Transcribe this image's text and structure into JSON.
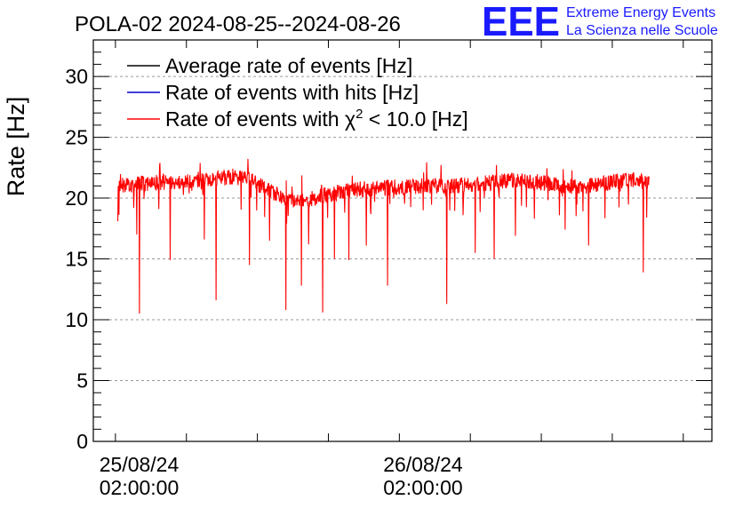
{
  "chart_data": {
    "type": "line",
    "title": "POLA-02 2024-08-25--2024-08-26",
    "ylabel": "Rate [Hz]",
    "xlabel": "",
    "ylim": [
      0,
      33
    ],
    "yticks": [
      0,
      5,
      10,
      15,
      20,
      25,
      30
    ],
    "grid": true,
    "legend_position": "top-left",
    "x_unit": "hours since 2024-08-25 00:00:00",
    "xlim": [
      -1.87,
      50.42
    ],
    "xticks": [
      {
        "hour": 2,
        "date": "25/08/24",
        "time": "02:00:00"
      },
      {
        "hour": 26,
        "date": "26/08/24",
        "time": "02:00:00"
      }
    ],
    "logo": {
      "text": "EEE",
      "line1": "Extreme Energy Events",
      "line2": "La Scienza nelle Scuole"
    },
    "series": [
      {
        "name": "Average rate of events [Hz]",
        "label_prefix": "Average rate of events [Hz]",
        "color": "#000000"
      },
      {
        "name": "Rate of events with hits [Hz]",
        "label_prefix": "Rate of events with hits [Hz]",
        "color": "#0000cc"
      },
      {
        "name": "Rate of events with χ2 < 10.0 [Hz]",
        "label_prefix": "Rate of events with ",
        "symbol": "χ",
        "sup": "2",
        "label_suffix": " < 10.0 [Hz]",
        "color": "#ff0000"
      }
    ],
    "data_range": {
      "x_start": 0.2,
      "x_end": 45.1
    },
    "trend": {
      "x": [
        0.2,
        4,
        8,
        10,
        11.5,
        13,
        14.5,
        16,
        18,
        20,
        22,
        24,
        26,
        28,
        30,
        32,
        34,
        36,
        38,
        40,
        42,
        44,
        45.1
      ],
      "y": [
        21.0,
        21.3,
        21.6,
        21.7,
        21.5,
        20.6,
        19.9,
        19.8,
        20.3,
        20.7,
        20.8,
        20.9,
        21.0,
        21.0,
        21.1,
        21.3,
        21.5,
        21.3,
        20.9,
        21.0,
        21.3,
        21.5,
        21.2
      ]
    },
    "noise_amplitude": 0.65,
    "dips": [
      {
        "x": 0.1,
        "y": 18.1
      },
      {
        "x": 1.8,
        "y": 17.0
      },
      {
        "x": 2.0,
        "y": 10.5
      },
      {
        "x": 4.6,
        "y": 14.9
      },
      {
        "x": 7.5,
        "y": 16.6
      },
      {
        "x": 8.5,
        "y": 11.6
      },
      {
        "x": 11.3,
        "y": 14.5
      },
      {
        "x": 13.0,
        "y": 16.5
      },
      {
        "x": 14.4,
        "y": 10.8
      },
      {
        "x": 15.7,
        "y": 12.8
      },
      {
        "x": 16.3,
        "y": 16.2
      },
      {
        "x": 17.5,
        "y": 10.6
      },
      {
        "x": 18.5,
        "y": 15.0
      },
      {
        "x": 19.7,
        "y": 14.9
      },
      {
        "x": 21.2,
        "y": 16.1
      },
      {
        "x": 23.0,
        "y": 12.8
      },
      {
        "x": 26.0,
        "y": 19.0
      },
      {
        "x": 28.0,
        "y": 11.3
      },
      {
        "x": 30.4,
        "y": 15.5
      },
      {
        "x": 32.0,
        "y": 15.0
      },
      {
        "x": 33.8,
        "y": 16.9
      },
      {
        "x": 35.4,
        "y": 18.3
      },
      {
        "x": 38.0,
        "y": 17.4
      },
      {
        "x": 40.0,
        "y": 16.1
      },
      {
        "x": 44.6,
        "y": 13.9
      },
      {
        "x": 44.9,
        "y": 18.4
      }
    ]
  }
}
